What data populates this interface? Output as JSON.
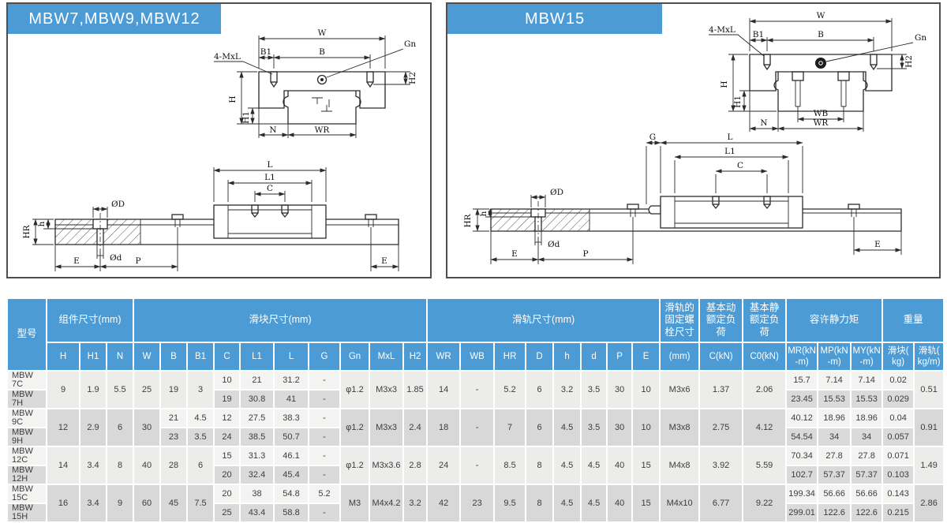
{
  "accent_blue": "#4d9bd5",
  "panels": {
    "left": {
      "title": "MBW7,MBW9,MBW12",
      "front": {
        "w": "W",
        "b1": "B1",
        "b": "B",
        "gn": "Gn",
        "mxl": "4-MxL",
        "h": "H",
        "h1": "H1",
        "h2": "H2",
        "n": "N",
        "wr": "WR"
      },
      "side": {
        "l": "L",
        "l1": "L1",
        "c": "C",
        "hr": "HR",
        "h": "h",
        "dBig": "ØD",
        "dSmall": "Ød",
        "e1": "E",
        "p": "P",
        "e2": "E"
      }
    },
    "right": {
      "title": "MBW15",
      "front": {
        "w": "W",
        "b1": "B1",
        "b": "B",
        "gn": "Gn",
        "mxl": "4-MxL",
        "h": "H",
        "h1": "H1",
        "h2": "H2",
        "n": "N",
        "wb": "WB",
        "wr": "WR"
      },
      "side": {
        "g": "G",
        "l": "L",
        "l1": "L1",
        "c": "C",
        "hr": "HR",
        "h": "h",
        "dBig": "ØD",
        "dSmall": "Ød",
        "e1": "E",
        "p": "P",
        "e2": "E"
      }
    }
  },
  "table": {
    "header": {
      "model": "型号",
      "groups": [
        {
          "label": "组件尺寸(mm)",
          "span": 3
        },
        {
          "label": "滑块尺寸(mm)",
          "span": 10
        },
        {
          "label": "滑轨尺寸(mm)",
          "span": 8
        },
        {
          "label": "滑轨的\n固定螺\n栓尺寸",
          "span": 1
        },
        {
          "label": "基本动\n额定负\n荷",
          "span": 1
        },
        {
          "label": "基本静\n额定负\n荷",
          "span": 1
        },
        {
          "label": "容许静力矩",
          "span": 3
        },
        {
          "label": "重量",
          "span": 2
        }
      ],
      "cols": [
        "H",
        "H1",
        "N",
        "W",
        "B",
        "B1",
        "C",
        "L1",
        "L",
        "G",
        "Gn",
        "MxL",
        "H2",
        "WR",
        "WB",
        "HR",
        "D",
        "h",
        "d",
        "P",
        "E",
        "(mm)",
        "C(kN)",
        "C0(kN)",
        "MR(kN\n-m)",
        "MP(kN\n-m)",
        "MY(kN\n-m)",
        "滑块(\nkg)",
        "滑轨(\nkg/m)"
      ]
    },
    "groups": [
      {
        "row1": [
          [
            "MBW 7C",
            1
          ],
          [
            "9",
            2
          ],
          [
            "1.9",
            2
          ],
          [
            "5.5",
            2
          ],
          [
            "25",
            2
          ],
          [
            "19",
            2
          ],
          [
            "3",
            2
          ],
          [
            "10",
            1
          ],
          [
            "21",
            1
          ],
          [
            "31.2",
            1
          ],
          [
            "-",
            1
          ],
          [
            "φ1.2",
            2
          ],
          [
            "M3x3",
            2
          ],
          [
            "1.85",
            2
          ],
          [
            "14",
            2
          ],
          [
            "-",
            2
          ],
          [
            "5.2",
            2
          ],
          [
            "6",
            2
          ],
          [
            "3.2",
            2
          ],
          [
            "3.5",
            2
          ],
          [
            "30",
            2
          ],
          [
            "10",
            2
          ],
          [
            "M3x6",
            2
          ],
          [
            "1.37",
            2
          ],
          [
            "2.06",
            2
          ],
          [
            "15.7",
            1
          ],
          [
            "7.14",
            1
          ],
          [
            "7.14",
            1
          ],
          [
            "0.02",
            1
          ],
          [
            "0.51",
            2
          ]
        ],
        "row2": [
          [
            "MBW 7H"
          ],
          [
            "19"
          ],
          [
            "30.8"
          ],
          [
            "41"
          ],
          [
            "-"
          ],
          [
            "23.45"
          ],
          [
            "15.53"
          ],
          [
            "15.53"
          ],
          [
            "0.029"
          ]
        ]
      },
      {
        "row1": [
          [
            "MBW 9C",
            1
          ],
          [
            "12",
            2
          ],
          [
            "2.9",
            2
          ],
          [
            "6",
            2
          ],
          [
            "30",
            2
          ],
          [
            "21",
            1
          ],
          [
            "4.5",
            1
          ],
          [
            "12",
            1
          ],
          [
            "27.5",
            1
          ],
          [
            "38.3",
            1
          ],
          [
            "-",
            1
          ],
          [
            "φ1.2",
            2
          ],
          [
            "M3x3",
            2
          ],
          [
            "2.4",
            2
          ],
          [
            "18",
            2
          ],
          [
            "-",
            2
          ],
          [
            "7",
            2
          ],
          [
            "6",
            2
          ],
          [
            "4.5",
            2
          ],
          [
            "3.5",
            2
          ],
          [
            "30",
            2
          ],
          [
            "10",
            2
          ],
          [
            "M3x8",
            2
          ],
          [
            "2.75",
            2
          ],
          [
            "4.12",
            2
          ],
          [
            "40.12",
            1
          ],
          [
            "18.96",
            1
          ],
          [
            "18.96",
            1
          ],
          [
            "0.04",
            1
          ],
          [
            "0.91",
            2
          ]
        ],
        "row2": [
          [
            "MBW 9H"
          ],
          [
            "23"
          ],
          [
            "3.5"
          ],
          [
            "24"
          ],
          [
            "38.5"
          ],
          [
            "50.7"
          ],
          [
            "-"
          ],
          [
            "54.54"
          ],
          [
            "34"
          ],
          [
            "34"
          ],
          [
            "0.057"
          ]
        ]
      },
      {
        "row1": [
          [
            "MBW 12C",
            1
          ],
          [
            "14",
            2
          ],
          [
            "3.4",
            2
          ],
          [
            "8",
            2
          ],
          [
            "40",
            2
          ],
          [
            "28",
            2
          ],
          [
            "6",
            2
          ],
          [
            "15",
            1
          ],
          [
            "31.3",
            1
          ],
          [
            "46.1",
            1
          ],
          [
            "-",
            1
          ],
          [
            "φ1.2",
            2
          ],
          [
            "M3x3.6",
            2
          ],
          [
            "2.8",
            2
          ],
          [
            "24",
            2
          ],
          [
            "-",
            2
          ],
          [
            "8.5",
            2
          ],
          [
            "8",
            2
          ],
          [
            "4.5",
            2
          ],
          [
            "4.5",
            2
          ],
          [
            "40",
            2
          ],
          [
            "15",
            2
          ],
          [
            "M4x8",
            2
          ],
          [
            "3.92",
            2
          ],
          [
            "5.59",
            2
          ],
          [
            "70.34",
            1
          ],
          [
            "27.8",
            1
          ],
          [
            "27.8",
            1
          ],
          [
            "0.071",
            1
          ],
          [
            "1.49",
            2
          ]
        ],
        "row2": [
          [
            "MBW 12H"
          ],
          [
            "20"
          ],
          [
            "32.4"
          ],
          [
            "45.4"
          ],
          [
            "-"
          ],
          [
            "102.7"
          ],
          [
            "57.37"
          ],
          [
            "57.37"
          ],
          [
            "0.103"
          ]
        ]
      },
      {
        "row1": [
          [
            "MBW 15C",
            1
          ],
          [
            "16",
            2
          ],
          [
            "3.4",
            2
          ],
          [
            "9",
            2
          ],
          [
            "60",
            2
          ],
          [
            "45",
            2
          ],
          [
            "7.5",
            2
          ],
          [
            "20",
            1
          ],
          [
            "38",
            1
          ],
          [
            "54.8",
            1
          ],
          [
            "5.2",
            1
          ],
          [
            "M3",
            2
          ],
          [
            "M4x4.2",
            2
          ],
          [
            "3.2",
            2
          ],
          [
            "42",
            2
          ],
          [
            "23",
            2
          ],
          [
            "9.5",
            2
          ],
          [
            "8",
            2
          ],
          [
            "4.5",
            2
          ],
          [
            "4.5",
            2
          ],
          [
            "40",
            2
          ],
          [
            "15",
            2
          ],
          [
            "M4x10",
            2
          ],
          [
            "6.77",
            2
          ],
          [
            "9.22",
            2
          ],
          [
            "199.34",
            1
          ],
          [
            "56.66",
            1
          ],
          [
            "56.66",
            1
          ],
          [
            "0.143",
            1
          ],
          [
            "2.86",
            2
          ]
        ],
        "row2": [
          [
            "MBW 15H"
          ],
          [
            "25"
          ],
          [
            "43.4"
          ],
          [
            "58.8"
          ],
          [
            "-"
          ],
          [
            "299.01"
          ],
          [
            "122.6"
          ],
          [
            "122.6"
          ],
          [
            "0.215"
          ]
        ]
      }
    ]
  }
}
